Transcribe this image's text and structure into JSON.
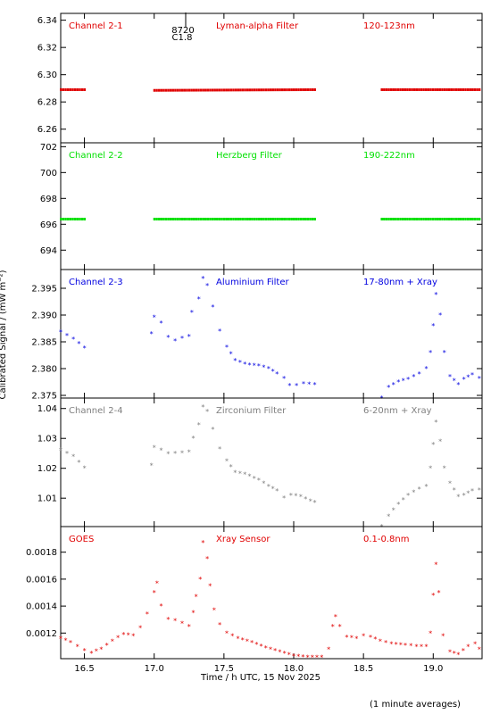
{
  "ylabel": "Calibrated Signal / (mW m⁻²)",
  "xlabel": "Time / h UTC, 15 Nov 2025",
  "footnote": "(1 minute averages)",
  "flare_marker": {
    "id": "8720",
    "class": "C1.8",
    "time": 17.35
  },
  "colors": {
    "red": "#e00000",
    "green": "#00e000",
    "blue": "#0000e0",
    "gray": "#808080"
  },
  "chart_data": [
    {
      "type": "scatter",
      "channel": "Channel 2-1",
      "filter": "Lyman-alpha Filter",
      "band": "120-123nm",
      "color": "#e00000",
      "ylim": [
        6.25,
        6.345
      ],
      "yticks": [
        "6.26",
        "6.28",
        "6.30",
        "6.32",
        "6.34"
      ],
      "ytickvals": [
        6.26,
        6.28,
        6.3,
        6.32,
        6.34
      ],
      "segments": [
        {
          "x": [
            16.33,
            16.5
          ],
          "y": [
            6.289,
            6.289
          ]
        },
        {
          "x": [
            17.0,
            18.15
          ],
          "y": [
            6.2885,
            6.289
          ]
        },
        {
          "x": [
            18.63,
            19.33
          ],
          "y": [
            6.289,
            6.289
          ]
        }
      ]
    },
    {
      "type": "scatter",
      "channel": "Channel 2-2",
      "filter": "Herzberg Filter",
      "band": "190-222nm",
      "color": "#00e000",
      "ylim": [
        692.5,
        702.3
      ],
      "yticks": [
        "694",
        "696",
        "698",
        "700",
        "702"
      ],
      "ytickvals": [
        694,
        696,
        698,
        700,
        702
      ],
      "segments": [
        {
          "x": [
            16.33,
            16.5
          ],
          "y": [
            696.4,
            696.4
          ]
        },
        {
          "x": [
            17.0,
            18.15
          ],
          "y": [
            696.4,
            696.4
          ]
        },
        {
          "x": [
            18.63,
            19.33
          ],
          "y": [
            696.4,
            696.4
          ]
        }
      ]
    },
    {
      "type": "scatter",
      "channel": "Channel 2-3",
      "filter": "Aluminium Filter",
      "band": "17-80nm + Xray",
      "color": "#0000e0",
      "ylim": [
        2.3745,
        2.3985
      ],
      "yticks": [
        "2.375",
        "2.380",
        "2.385",
        "2.390",
        "2.395"
      ],
      "ytickvals": [
        2.375,
        2.38,
        2.385,
        2.39,
        2.395
      ],
      "points": [
        [
          16.33,
          2.3868
        ],
        [
          16.42,
          2.3855
        ],
        [
          16.5,
          2.3838
        ],
        [
          16.98,
          2.3865
        ],
        [
          17.0,
          2.3896
        ],
        [
          17.05,
          2.3885
        ],
        [
          17.1,
          2.3858
        ],
        [
          17.15,
          2.3852
        ],
        [
          17.2,
          2.3857
        ],
        [
          17.25,
          2.386
        ],
        [
          17.27,
          2.3905
        ],
        [
          17.32,
          2.393
        ],
        [
          17.35,
          2.3968
        ],
        [
          17.38,
          2.3955
        ],
        [
          17.42,
          2.3915
        ],
        [
          17.47,
          2.387
        ],
        [
          17.52,
          2.384
        ],
        [
          17.58,
          2.3815
        ],
        [
          17.65,
          2.3808
        ],
        [
          17.75,
          2.3805
        ],
        [
          17.82,
          2.38
        ],
        [
          17.88,
          2.379
        ],
        [
          17.93,
          2.3782
        ],
        [
          17.97,
          2.3768
        ],
        [
          18.02,
          2.3768
        ],
        [
          18.07,
          2.3772
        ],
        [
          18.15,
          2.377
        ],
        [
          18.63,
          2.3745
        ],
        [
          18.68,
          2.3765
        ],
        [
          18.75,
          2.3775
        ],
        [
          18.82,
          2.378
        ],
        [
          18.9,
          2.379
        ],
        [
          18.95,
          2.38
        ],
        [
          18.98,
          2.383
        ],
        [
          19.0,
          2.388
        ],
        [
          19.02,
          2.3938
        ],
        [
          19.05,
          2.39
        ],
        [
          19.08,
          2.383
        ],
        [
          19.12,
          2.3785
        ],
        [
          19.18,
          2.377
        ],
        [
          19.22,
          2.378
        ],
        [
          19.28,
          2.3788
        ],
        [
          19.33,
          2.3782
        ]
      ]
    },
    {
      "type": "scatter",
      "channel": "Channel 2-4",
      "filter": "Zirconium Filter",
      "band": "6-20nm + Xray",
      "color": "#808080",
      "ylim": [
        1.0005,
        1.0435
      ],
      "yticks": [
        "1.01",
        "1.02",
        "1.03",
        "1.04"
      ],
      "ytickvals": [
        1.01,
        1.02,
        1.03,
        1.04
      ],
      "points": [
        [
          16.33,
          1.026
        ],
        [
          16.42,
          1.024
        ],
        [
          16.5,
          1.02
        ],
        [
          16.98,
          1.021
        ],
        [
          17.0,
          1.027
        ],
        [
          17.05,
          1.026
        ],
        [
          17.1,
          1.0248
        ],
        [
          17.15,
          1.025
        ],
        [
          17.2,
          1.0252
        ],
        [
          17.25,
          1.0255
        ],
        [
          17.28,
          1.03
        ],
        [
          17.32,
          1.0345
        ],
        [
          17.35,
          1.0405
        ],
        [
          17.38,
          1.039
        ],
        [
          17.42,
          1.033
        ],
        [
          17.47,
          1.0265
        ],
        [
          17.52,
          1.0225
        ],
        [
          17.58,
          1.0185
        ],
        [
          17.65,
          1.018
        ],
        [
          17.75,
          1.016
        ],
        [
          17.82,
          1.014
        ],
        [
          17.88,
          1.0125
        ],
        [
          17.93,
          1.01
        ],
        [
          17.98,
          1.011
        ],
        [
          18.05,
          1.0105
        ],
        [
          18.12,
          1.009
        ],
        [
          18.15,
          1.0085
        ],
        [
          18.63,
          1.0005
        ],
        [
          18.68,
          1.004
        ],
        [
          18.75,
          1.008
        ],
        [
          18.82,
          1.011
        ],
        [
          18.9,
          1.013
        ],
        [
          18.95,
          1.014
        ],
        [
          18.98,
          1.02
        ],
        [
          19.0,
          1.028
        ],
        [
          19.02,
          1.0355
        ],
        [
          19.05,
          1.029
        ],
        [
          19.08,
          1.02
        ],
        [
          19.12,
          1.015
        ],
        [
          19.18,
          1.0105
        ],
        [
          19.22,
          1.011
        ],
        [
          19.28,
          1.0125
        ],
        [
          19.33,
          1.0128
        ]
      ]
    },
    {
      "type": "scatter",
      "channel": "GOES",
      "filter": "Xray Sensor",
      "band": "0.1-0.8nm",
      "color": "#e00000",
      "ylim": [
        0.00101,
        0.00199
      ],
      "yticks": [
        "0.0012",
        "0.0014",
        "0.0016",
        "0.0018"
      ],
      "ytickvals": [
        0.0012,
        0.0014,
        0.0016,
        0.0018
      ],
      "points": [
        [
          16.33,
          0.00116
        ],
        [
          16.4,
          0.00113
        ],
        [
          16.45,
          0.0011
        ],
        [
          16.5,
          0.00107
        ],
        [
          16.55,
          0.00105
        ],
        [
          16.62,
          0.00108
        ],
        [
          16.7,
          0.00114
        ],
        [
          16.78,
          0.00119
        ],
        [
          16.85,
          0.00118
        ],
        [
          16.9,
          0.00124
        ],
        [
          16.95,
          0.00134
        ],
        [
          17.0,
          0.0015
        ],
        [
          17.02,
          0.00157
        ],
        [
          17.05,
          0.0014
        ],
        [
          17.1,
          0.0013
        ],
        [
          17.15,
          0.00129
        ],
        [
          17.2,
          0.00127
        ],
        [
          17.25,
          0.00125
        ],
        [
          17.28,
          0.00135
        ],
        [
          17.3,
          0.00147
        ],
        [
          17.33,
          0.0016
        ],
        [
          17.35,
          0.00187
        ],
        [
          17.38,
          0.00175
        ],
        [
          17.4,
          0.00155
        ],
        [
          17.43,
          0.00137
        ],
        [
          17.47,
          0.00126
        ],
        [
          17.52,
          0.0012
        ],
        [
          17.6,
          0.00116
        ],
        [
          17.7,
          0.00113
        ],
        [
          17.8,
          0.00109
        ],
        [
          17.9,
          0.00106
        ],
        [
          18.0,
          0.00103
        ],
        [
          18.1,
          0.00102
        ],
        [
          18.2,
          0.00102
        ],
        [
          18.25,
          0.00108
        ],
        [
          18.28,
          0.00125
        ],
        [
          18.3,
          0.00132
        ],
        [
          18.33,
          0.00125
        ],
        [
          18.38,
          0.00117
        ],
        [
          18.45,
          0.00116
        ],
        [
          18.5,
          0.00118
        ],
        [
          18.55,
          0.00117
        ],
        [
          18.62,
          0.00114
        ],
        [
          18.7,
          0.00112
        ],
        [
          18.8,
          0.00111
        ],
        [
          18.88,
          0.0011
        ],
        [
          18.95,
          0.0011
        ],
        [
          18.98,
          0.0012
        ],
        [
          19.0,
          0.00148
        ],
        [
          19.02,
          0.00171
        ],
        [
          19.04,
          0.0015
        ],
        [
          19.07,
          0.00118
        ],
        [
          19.12,
          0.00106
        ],
        [
          19.18,
          0.00104
        ],
        [
          19.25,
          0.0011
        ],
        [
          19.3,
          0.00112
        ],
        [
          19.33,
          0.00108
        ]
      ]
    }
  ],
  "x_axis": {
    "xlim": [
      16.33,
      19.35
    ],
    "ticks": [
      "16.5",
      "17.0",
      "17.5",
      "18.0",
      "18.5",
      "19.0"
    ],
    "tickvals": [
      16.5,
      17.0,
      17.5,
      18.0,
      18.5,
      19.0
    ]
  }
}
